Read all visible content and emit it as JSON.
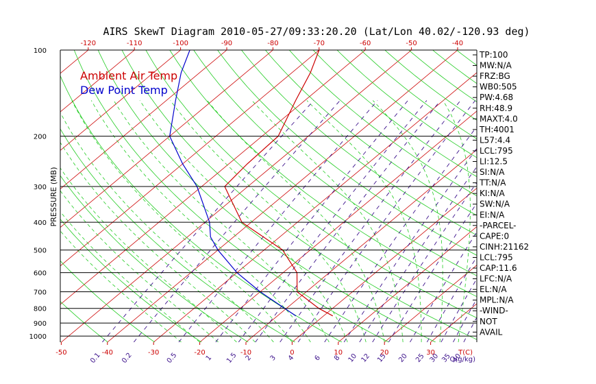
{
  "title": "AIRS SkewT Diagram 2010-05-27/09:33:20.20 (Lat/Lon 40.02/-120.93 deg)",
  "y_axis_label": "PRESSURE (MB)",
  "legend": [
    {
      "label": "Ambient Air Temp",
      "color": "#cc0000"
    },
    {
      "label": "Dew Point Temp",
      "color": "#0000cc"
    }
  ],
  "colors": {
    "isobar": "#000000",
    "isotherm": "#cc0000",
    "dry_adiabat": "#22cc22",
    "moist_adiabat": "#22cc22",
    "mixing_ratio": "#3a0f8a",
    "temperature": "#cc0000",
    "dewpoint": "#0000cc"
  },
  "chart_data": {
    "type": "line",
    "diagram": "skew-T log-P",
    "pressure_ticks": [
      {
        "value": 100,
        "label": "100"
      },
      {
        "value": 200,
        "label": "200"
      },
      {
        "value": 300,
        "label": "300"
      },
      {
        "value": 400,
        "label": "400"
      },
      {
        "value": 500,
        "label": "500"
      },
      {
        "value": 600,
        "label": "600"
      },
      {
        "value": 700,
        "label": "700"
      },
      {
        "value": 800,
        "label": "800"
      },
      {
        "value": 900,
        "label": "900"
      },
      {
        "value": 1000,
        "label": "1000"
      }
    ],
    "ylim": [
      100,
      1050
    ],
    "y_scale": "log",
    "top_temperature_ticks": [
      {
        "value": -120,
        "label": "-120"
      },
      {
        "value": -110,
        "label": "-110"
      },
      {
        "value": -100,
        "label": "-100"
      },
      {
        "value": -90,
        "label": "-90"
      },
      {
        "value": -80,
        "label": "-80"
      },
      {
        "value": -70,
        "label": "-70"
      },
      {
        "value": -60,
        "label": "-60"
      },
      {
        "value": -50,
        "label": "-50"
      },
      {
        "value": -40,
        "label": "-40"
      }
    ],
    "bottom_temperature_ticks": [
      {
        "value": -50,
        "label": "-50"
      },
      {
        "value": -40,
        "label": "-40"
      },
      {
        "value": -30,
        "label": "-30"
      },
      {
        "value": -20,
        "label": "-20"
      },
      {
        "value": -10,
        "label": "-10"
      },
      {
        "value": 0,
        "label": "0"
      },
      {
        "value": 10,
        "label": "10"
      },
      {
        "value": 20,
        "label": "20"
      },
      {
        "value": 30,
        "label": "30"
      }
    ],
    "bottom_temperature_unit": "T(C)",
    "mixing_ratio_ticks": [
      {
        "value": 0.1,
        "label": "0.1"
      },
      {
        "value": 0.2,
        "label": "0.2"
      },
      {
        "value": 0.5,
        "label": "0.5"
      },
      {
        "value": 1,
        "label": "1"
      },
      {
        "value": 1.5,
        "label": "1.5"
      },
      {
        "value": 2,
        "label": "2"
      },
      {
        "value": 3,
        "label": "3"
      },
      {
        "value": 4,
        "label": "4"
      },
      {
        "value": 6,
        "label": "6"
      },
      {
        "value": 8,
        "label": "8"
      },
      {
        "value": 10,
        "label": "10"
      },
      {
        "value": 12,
        "label": "12"
      },
      {
        "value": 15,
        "label": "15"
      },
      {
        "value": 20,
        "label": "20"
      },
      {
        "value": 25,
        "label": "25"
      },
      {
        "value": 30,
        "label": "30"
      },
      {
        "value": 35,
        "label": "35"
      },
      {
        "value": 40,
        "label": "40"
      }
    ],
    "mixing_ratio_unit": "Q(g/kg)",
    "series": [
      {
        "name": "Ambient Air Temp",
        "points": [
          {
            "p": 850,
            "t": 2.0
          },
          {
            "p": 800,
            "t": -3.0
          },
          {
            "p": 700,
            "t": -12.0
          },
          {
            "p": 600,
            "t": -17.0
          },
          {
            "p": 500,
            "t": -26.0
          },
          {
            "p": 400,
            "t": -42.0
          },
          {
            "p": 300,
            "t": -55.0
          },
          {
            "p": 250,
            "t": -56.0
          },
          {
            "p": 200,
            "t": -56.5
          },
          {
            "p": 150,
            "t": -62.0
          },
          {
            "p": 120,
            "t": -66.0
          },
          {
            "p": 100,
            "t": -70.0
          }
        ]
      },
      {
        "name": "Dew Point Temp",
        "points": [
          {
            "p": 850,
            "t": -6.0
          },
          {
            "p": 700,
            "t": -20.0
          },
          {
            "p": 600,
            "t": -30.0
          },
          {
            "p": 500,
            "t": -40.0
          },
          {
            "p": 450,
            "t": -45.0
          },
          {
            "p": 400,
            "t": -49.0
          },
          {
            "p": 300,
            "t": -61.0
          },
          {
            "p": 250,
            "t": -70.0
          },
          {
            "p": 200,
            "t": -80.0
          },
          {
            "p": 150,
            "t": -88.0
          },
          {
            "p": 120,
            "t": -94.0
          },
          {
            "p": 100,
            "t": -98.0
          }
        ]
      }
    ]
  },
  "stats": [
    "TP:100",
    "MW:N/A",
    "FRZ:BG",
    "WB0:505",
    "PW:4.68",
    "RH:48.9",
    "MAXT:4.0",
    "TH:4001",
    "L57:4.4",
    "LCL:795",
    "LI:12.5",
    "SI:N/A",
    "TT:N/A",
    "KI:N/A",
    "SW:N/A",
    "EI:N/A",
    "-PARCEL-",
    "CAPE:0",
    "CINH:21162",
    "LCL:795",
    "CAP:11.6",
    "LFC:N/A",
    "EL:N/A",
    "MPL:N/A",
    "-WIND-",
    "NOT",
    "AVAIL"
  ]
}
